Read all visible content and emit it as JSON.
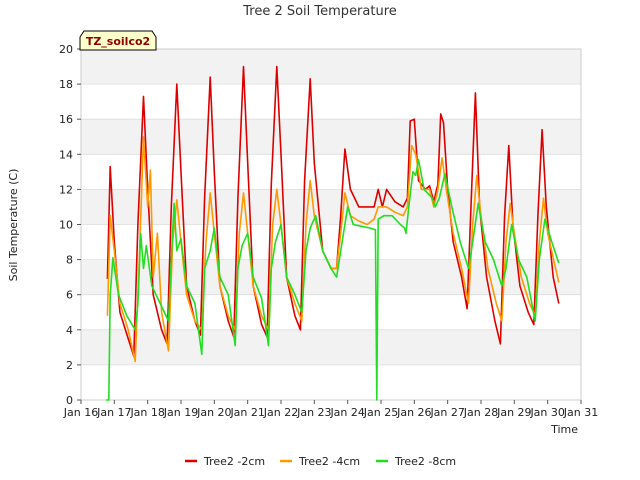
{
  "chart_data": {
    "type": "line",
    "title": "Tree 2 Soil Temperature",
    "xlabel": "Time",
    "ylabel": "Soil Temperature (C)",
    "site_tag": "TZ_soilco2",
    "xlim": [
      "2024-01-16",
      "2024-01-31"
    ],
    "ylim": [
      0,
      20
    ],
    "x_ticks": [
      "Jan 16",
      "Jan 17",
      "Jan 18",
      "Jan 19",
      "Jan 20",
      "Jan 21",
      "Jan 22",
      "Jan 23",
      "Jan 24",
      "Jan 25",
      "Jan 26",
      "Jan 27",
      "Jan 28",
      "Jan 29",
      "Jan 30",
      "Jan 31"
    ],
    "y_ticks": [
      0,
      2,
      4,
      6,
      8,
      10,
      12,
      14,
      16,
      18,
      20
    ],
    "grid": "horizontal bands",
    "legend_placement": "bottom-center",
    "series": [
      {
        "name": "Tree2 -2cm",
        "color": "#dd0000",
        "points": [
          [
            "2024-01-16 19:00",
            6.9
          ],
          [
            "2024-01-16 21:00",
            13.3
          ],
          [
            "2024-01-17 00:00",
            9.0
          ],
          [
            "2024-01-17 04:00",
            5.0
          ],
          [
            "2024-01-17 10:00",
            3.5
          ],
          [
            "2024-01-17 14:00",
            2.5
          ],
          [
            "2024-01-17 17:00",
            10.0
          ],
          [
            "2024-01-17 21:00",
            17.3
          ],
          [
            "2024-01-18 00:00",
            12.0
          ],
          [
            "2024-01-18 04:00",
            6.0
          ],
          [
            "2024-01-18 10:00",
            4.0
          ],
          [
            "2024-01-18 14:00",
            3.2
          ],
          [
            "2024-01-18 17:00",
            11.0
          ],
          [
            "2024-01-18 21:00",
            18.0
          ],
          [
            "2024-01-19 00:00",
            13.0
          ],
          [
            "2024-01-19 04:00",
            6.5
          ],
          [
            "2024-01-19 10:00",
            4.5
          ],
          [
            "2024-01-19 14:00",
            3.7
          ],
          [
            "2024-01-19 17:00",
            11.5
          ],
          [
            "2024-01-19 21:00",
            18.4
          ],
          [
            "2024-01-20 00:00",
            13.0
          ],
          [
            "2024-01-20 04:00",
            6.5
          ],
          [
            "2024-01-20 10:00",
            4.5
          ],
          [
            "2024-01-20 14:00",
            3.6
          ],
          [
            "2024-01-20 17:00",
            11.5
          ],
          [
            "2024-01-20 21:00",
            19.0
          ],
          [
            "2024-01-21 00:00",
            13.5
          ],
          [
            "2024-01-21 04:00",
            6.5
          ],
          [
            "2024-01-21 10:00",
            4.3
          ],
          [
            "2024-01-21 14:00",
            3.6
          ],
          [
            "2024-01-21 17:00",
            12.3
          ],
          [
            "2024-01-21 21:00",
            19.0
          ],
          [
            "2024-01-22 00:00",
            14.0
          ],
          [
            "2024-01-22 04:00",
            7.0
          ],
          [
            "2024-01-22 10:00",
            4.8
          ],
          [
            "2024-01-22 14:00",
            4.0
          ],
          [
            "2024-01-22 17:00",
            12.5
          ],
          [
            "2024-01-22 21:00",
            18.3
          ],
          [
            "2024-01-23 00:00",
            13.5
          ],
          [
            "2024-01-23 06:00",
            8.5
          ],
          [
            "2024-01-23 12:00",
            7.5
          ],
          [
            "2024-01-23 16:00",
            7.5
          ],
          [
            "2024-01-23 19:00",
            10.5
          ],
          [
            "2024-01-23 22:00",
            14.3
          ],
          [
            "2024-01-24 02:00",
            12.0
          ],
          [
            "2024-01-24 08:00",
            11.0
          ],
          [
            "2024-01-24 14:00",
            11.0
          ],
          [
            "2024-01-24 19:00",
            11.0
          ],
          [
            "2024-01-24 22:00",
            12.0
          ],
          [
            "2024-01-25 01:00",
            11.0
          ],
          [
            "2024-01-25 04:00",
            12.0
          ],
          [
            "2024-01-25 10:00",
            11.3
          ],
          [
            "2024-01-25 16:00",
            11.0
          ],
          [
            "2024-01-25 19:00",
            11.5
          ],
          [
            "2024-01-25 21:00",
            15.9
          ],
          [
            "2024-01-26 00:00",
            16.0
          ],
          [
            "2024-01-26 03:00",
            12.5
          ],
          [
            "2024-01-26 08:00",
            12.0
          ],
          [
            "2024-01-26 11:00",
            12.2
          ],
          [
            "2024-01-26 14:00",
            11.3
          ],
          [
            "2024-01-26 17:00",
            12.3
          ],
          [
            "2024-01-26 19:00",
            16.3
          ],
          [
            "2024-01-26 21:00",
            15.8
          ],
          [
            "2024-01-27 00:00",
            12.0
          ],
          [
            "2024-01-27 04:00",
            9.0
          ],
          [
            "2024-01-27 10:00",
            7.0
          ],
          [
            "2024-01-27 14:00",
            5.2
          ],
          [
            "2024-01-27 17:00",
            11.5
          ],
          [
            "2024-01-27 20:00",
            17.5
          ],
          [
            "2024-01-27 23:00",
            11.0
          ],
          [
            "2024-01-28 04:00",
            7.0
          ],
          [
            "2024-01-28 10:00",
            4.5
          ],
          [
            "2024-01-28 14:00",
            3.2
          ],
          [
            "2024-01-28 17:00",
            10.5
          ],
          [
            "2024-01-28 20:00",
            14.5
          ],
          [
            "2024-01-28 23:00",
            10.0
          ],
          [
            "2024-01-29 04:00",
            6.5
          ],
          [
            "2024-01-29 10:00",
            5.0
          ],
          [
            "2024-01-29 14:00",
            4.3
          ],
          [
            "2024-01-29 17:00",
            10.5
          ],
          [
            "2024-01-29 20:00",
            15.4
          ],
          [
            "2024-01-29 23:00",
            11.0
          ],
          [
            "2024-01-30 04:00",
            7.0
          ],
          [
            "2024-01-30 08:00",
            5.5
          ]
        ]
      },
      {
        "name": "Tree2 -4cm",
        "color": "#ff9900",
        "points": [
          [
            "2024-01-16 19:00",
            4.8
          ],
          [
            "2024-01-16 21:00",
            10.5
          ],
          [
            "2024-01-17 00:00",
            8.5
          ],
          [
            "2024-01-17 04:00",
            5.5
          ],
          [
            "2024-01-17 10:00",
            4.0
          ],
          [
            "2024-01-17 15:00",
            2.2
          ],
          [
            "2024-01-17 18:00",
            8.0
          ],
          [
            "2024-01-17 21:00",
            15.0
          ],
          [
            "2024-01-18 00:00",
            11.0
          ],
          [
            "2024-01-18 02:00",
            13.1
          ],
          [
            "2024-01-18 04:00",
            7.0
          ],
          [
            "2024-01-18 07:00",
            9.5
          ],
          [
            "2024-01-18 10:00",
            5.0
          ],
          [
            "2024-01-18 15:00",
            2.8
          ],
          [
            "2024-01-18 18:00",
            9.0
          ],
          [
            "2024-01-18 21:00",
            11.4
          ],
          [
            "2024-01-19 00:00",
            9.0
          ],
          [
            "2024-01-19 04:00",
            6.0
          ],
          [
            "2024-01-19 10:00",
            4.5
          ],
          [
            "2024-01-19 15:00",
            4.0
          ],
          [
            "2024-01-19 18:00",
            9.0
          ],
          [
            "2024-01-19 21:00",
            11.8
          ],
          [
            "2024-01-20 00:00",
            9.5
          ],
          [
            "2024-01-20 04:00",
            6.5
          ],
          [
            "2024-01-20 10:00",
            4.8
          ],
          [
            "2024-01-20 15:00",
            4.0
          ],
          [
            "2024-01-20 18:00",
            9.5
          ],
          [
            "2024-01-20 21:00",
            11.8
          ],
          [
            "2024-01-21 00:00",
            9.5
          ],
          [
            "2024-01-21 04:00",
            6.5
          ],
          [
            "2024-01-21 10:00",
            4.8
          ],
          [
            "2024-01-21 15:00",
            4.0
          ],
          [
            "2024-01-21 18:00",
            10.0
          ],
          [
            "2024-01-21 21:00",
            12.0
          ],
          [
            "2024-01-22 00:00",
            10.0
          ],
          [
            "2024-01-22 04:00",
            7.0
          ],
          [
            "2024-01-22 10:00",
            5.5
          ],
          [
            "2024-01-22 15:00",
            4.5
          ],
          [
            "2024-01-22 18:00",
            10.0
          ],
          [
            "2024-01-22 21:00",
            12.5
          ],
          [
            "2024-01-23 00:00",
            10.5
          ],
          [
            "2024-01-23 06:00",
            8.5
          ],
          [
            "2024-01-23 12:00",
            7.5
          ],
          [
            "2024-01-23 16:00",
            7.5
          ],
          [
            "2024-01-23 19:00",
            9.5
          ],
          [
            "2024-01-23 22:00",
            11.8
          ],
          [
            "2024-01-24 02:00",
            10.5
          ],
          [
            "2024-01-24 08:00",
            10.2
          ],
          [
            "2024-01-24 14:00",
            10.0
          ],
          [
            "2024-01-24 19:00",
            10.3
          ],
          [
            "2024-01-24 22:00",
            11.0
          ],
          [
            "2024-01-25 04:00",
            11.0
          ],
          [
            "2024-01-25 10:00",
            10.7
          ],
          [
            "2024-01-25 16:00",
            10.5
          ],
          [
            "2024-01-25 19:00",
            11.0
          ],
          [
            "2024-01-25 22:00",
            14.5
          ],
          [
            "2024-01-26 01:00",
            14.0
          ],
          [
            "2024-01-26 05:00",
            12.0
          ],
          [
            "2024-01-26 11:00",
            12.0
          ],
          [
            "2024-01-26 14:00",
            11.0
          ],
          [
            "2024-01-26 17:00",
            12.0
          ],
          [
            "2024-01-26 20:00",
            13.8
          ],
          [
            "2024-01-26 23:00",
            12.0
          ],
          [
            "2024-01-27 04:00",
            9.5
          ],
          [
            "2024-01-27 10:00",
            7.5
          ],
          [
            "2024-01-27 15:00",
            5.5
          ],
          [
            "2024-01-27 18:00",
            10.0
          ],
          [
            "2024-01-27 21:00",
            12.8
          ],
          [
            "2024-01-28 00:00",
            10.5
          ],
          [
            "2024-01-28 05:00",
            7.5
          ],
          [
            "2024-01-28 11:00",
            5.5
          ],
          [
            "2024-01-28 15:00",
            4.5
          ],
          [
            "2024-01-28 18:00",
            9.0
          ],
          [
            "2024-01-28 21:00",
            11.2
          ],
          [
            "2024-01-29 00:00",
            9.5
          ],
          [
            "2024-01-29 05:00",
            7.0
          ],
          [
            "2024-01-29 11:00",
            5.5
          ],
          [
            "2024-01-29 15:00",
            4.8
          ],
          [
            "2024-01-29 18:00",
            9.0
          ],
          [
            "2024-01-29 21:00",
            11.5
          ],
          [
            "2024-01-30 00:00",
            9.5
          ],
          [
            "2024-01-30 08:00",
            6.7
          ]
        ]
      },
      {
        "name": "Tree2 -8cm",
        "color": "#22dd22",
        "points": [
          [
            "2024-01-16 18:00",
            0.0
          ],
          [
            "2024-01-16 20:00",
            0.0
          ],
          [
            "2024-01-16 21:00",
            6.0
          ],
          [
            "2024-01-16 23:00",
            8.1
          ],
          [
            "2024-01-17 03:00",
            6.0
          ],
          [
            "2024-01-17 09:00",
            4.8
          ],
          [
            "2024-01-17 15:00",
            4.0
          ],
          [
            "2024-01-17 17:00",
            5.5
          ],
          [
            "2024-01-17 19:00",
            9.5
          ],
          [
            "2024-01-17 21:00",
            7.5
          ],
          [
            "2024-01-17 23:00",
            8.8
          ],
          [
            "2024-01-18 03:00",
            6.5
          ],
          [
            "2024-01-18 09:00",
            5.5
          ],
          [
            "2024-01-18 15:00",
            4.5
          ],
          [
            "2024-01-18 17:00",
            8.0
          ],
          [
            "2024-01-18 19:00",
            11.2
          ],
          [
            "2024-01-18 21:00",
            8.5
          ],
          [
            "2024-01-19 00:00",
            9.2
          ],
          [
            "2024-01-19 04:00",
            6.5
          ],
          [
            "2024-01-19 10:00",
            5.5
          ],
          [
            "2024-01-19 15:00",
            2.6
          ],
          [
            "2024-01-19 17:00",
            7.5
          ],
          [
            "2024-01-19 21:00",
            8.5
          ],
          [
            "2024-01-20 00:00",
            9.8
          ],
          [
            "2024-01-20 04:00",
            7.0
          ],
          [
            "2024-01-20 10:00",
            6.0
          ],
          [
            "2024-01-20 15:00",
            3.1
          ],
          [
            "2024-01-20 17:00",
            7.5
          ],
          [
            "2024-01-20 20:00",
            8.8
          ],
          [
            "2024-01-21 00:00",
            9.5
          ],
          [
            "2024-01-21 04:00",
            7.0
          ],
          [
            "2024-01-21 10:00",
            5.8
          ],
          [
            "2024-01-21 15:00",
            3.1
          ],
          [
            "2024-01-21 17:00",
            7.5
          ],
          [
            "2024-01-21 20:00",
            9.0
          ],
          [
            "2024-01-22 00:00",
            10.0
          ],
          [
            "2024-01-22 04:00",
            7.0
          ],
          [
            "2024-01-22 10:00",
            6.0
          ],
          [
            "2024-01-22 15:00",
            5.0
          ],
          [
            "2024-01-22 18:00",
            8.5
          ],
          [
            "2024-01-22 21:00",
            9.8
          ],
          [
            "2024-01-23 01:00",
            10.5
          ],
          [
            "2024-01-23 06:00",
            8.5
          ],
          [
            "2024-01-23 12:00",
            7.5
          ],
          [
            "2024-01-23 16:00",
            7.0
          ],
          [
            "2024-01-23 20:00",
            9.0
          ],
          [
            "2024-01-24 00:00",
            11.0
          ],
          [
            "2024-01-24 04:00",
            10.0
          ],
          [
            "2024-01-24 10:00",
            9.9
          ],
          [
            "2024-01-24 16:00",
            9.8
          ],
          [
            "2024-01-24 20:00",
            9.7
          ],
          [
            "2024-01-24 21:00",
            0.0
          ],
          [
            "2024-01-24 22:00",
            10.3
          ],
          [
            "2024-01-25 02:00",
            10.5
          ],
          [
            "2024-01-25 08:00",
            10.5
          ],
          [
            "2024-01-25 14:00",
            10.0
          ],
          [
            "2024-01-25 17:00",
            9.8
          ],
          [
            "2024-01-25 18:00",
            9.5
          ],
          [
            "2024-01-25 20:00",
            11.0
          ],
          [
            "2024-01-25 23:00",
            13.0
          ],
          [
            "2024-01-26 01:00",
            12.8
          ],
          [
            "2024-01-26 03:00",
            13.7
          ],
          [
            "2024-01-26 07:00",
            12.0
          ],
          [
            "2024-01-26 13:00",
            11.5
          ],
          [
            "2024-01-26 15:00",
            11.0
          ],
          [
            "2024-01-26 18:00",
            11.5
          ],
          [
            "2024-01-26 22:00",
            12.9
          ],
          [
            "2024-01-27 03:00",
            11.0
          ],
          [
            "2024-01-27 09:00",
            9.0
          ],
          [
            "2024-01-27 15:00",
            7.5
          ],
          [
            "2024-01-27 18:00",
            9.0
          ],
          [
            "2024-01-27 22:00",
            11.2
          ],
          [
            "2024-01-28 03:00",
            9.0
          ],
          [
            "2024-01-28 09:00",
            8.0
          ],
          [
            "2024-01-28 15:00",
            6.5
          ],
          [
            "2024-01-28 18:00",
            7.5
          ],
          [
            "2024-01-28 22:00",
            10.0
          ],
          [
            "2024-01-29 03:00",
            8.0
          ],
          [
            "2024-01-29 09:00",
            7.0
          ],
          [
            "2024-01-29 15:00",
            4.5
          ],
          [
            "2024-01-29 18:00",
            8.0
          ],
          [
            "2024-01-29 22:00",
            10.3
          ],
          [
            "2024-01-30 03:00",
            9.0
          ],
          [
            "2024-01-30 08:00",
            7.8
          ]
        ]
      }
    ]
  }
}
